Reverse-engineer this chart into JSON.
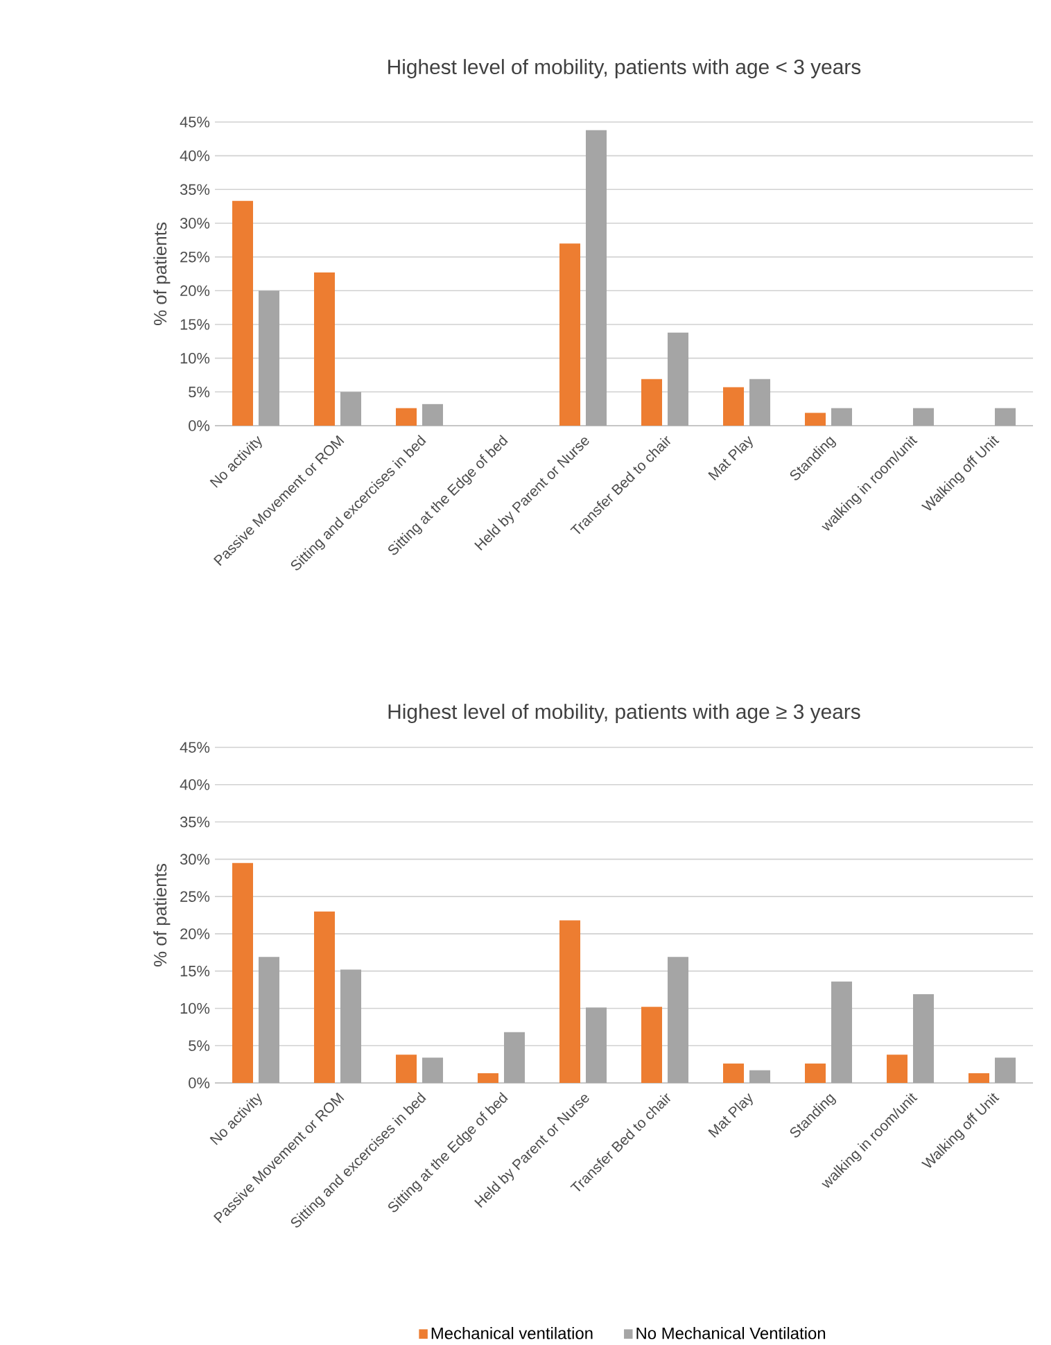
{
  "chart_data": [
    {
      "type": "bar",
      "title": "Highest level of mobility, patients with age < 3 years",
      "ylabel": "% of patients",
      "categories": [
        "No activity",
        "Passive Movement or ROM",
        "Sitting and excercises in bed",
        "Sitting at the Edge of bed",
        "Held by Parent or Nurse",
        "Transfer Bed to chair",
        "Mat Play",
        "Standing",
        "walking in room/unit",
        "Walking off Unit"
      ],
      "series": [
        {
          "color": "#ed7d31",
          "values": [
            33.3,
            22.7,
            2.6,
            0,
            27.0,
            6.9,
            5.7,
            1.9,
            0,
            0
          ]
        },
        {
          "color": "#a5a5a5",
          "values": [
            20.0,
            5.0,
            3.2,
            0,
            43.8,
            13.8,
            6.9,
            2.6,
            2.6,
            2.6
          ]
        }
      ],
      "ylim": [
        0,
        45
      ],
      "yticks": [
        {
          "value": 0,
          "label": "0%"
        },
        {
          "value": 5,
          "label": "5%"
        },
        {
          "value": 10,
          "label": "10%"
        },
        {
          "value": 15,
          "label": "15%"
        },
        {
          "value": 20,
          "label": "20%"
        },
        {
          "value": 25,
          "label": "25%"
        },
        {
          "value": 30,
          "label": "30%"
        },
        {
          "value": 35,
          "label": "35%"
        },
        {
          "value": 40,
          "label": "40%"
        },
        {
          "value": 45,
          "label": "45%"
        }
      ],
      "grid": "y"
    },
    {
      "type": "bar",
      "title": "Highest level of mobility, patients with age ≥ 3 years",
      "ylabel": "% of patients",
      "categories": [
        "No activity",
        "Passive Movement or ROM",
        "Sitting and excercises in bed",
        "Sitting at the Edge of bed",
        "Held by Parent or Nurse",
        "Transfer Bed to chair",
        "Mat Play",
        "Standing",
        "walking in room/unit",
        "Walking off Unit"
      ],
      "series": [
        {
          "name": "Mechanical ventilation",
          "color": "#ed7d31",
          "values": [
            29.5,
            23.0,
            3.8,
            1.3,
            21.8,
            10.2,
            2.6,
            2.6,
            3.8,
            1.3
          ]
        },
        {
          "name": "No Mechanical Ventilation",
          "color": "#a5a5a5",
          "values": [
            16.9,
            15.2,
            3.4,
            6.8,
            10.1,
            16.9,
            1.7,
            13.6,
            11.9,
            3.4
          ]
        }
      ],
      "ylim": [
        0,
        45
      ],
      "yticks": [
        {
          "value": 0,
          "label": "0%"
        },
        {
          "value": 5,
          "label": "5%"
        },
        {
          "value": 10,
          "label": "10%"
        },
        {
          "value": 15,
          "label": "15%"
        },
        {
          "value": 20,
          "label": "20%"
        },
        {
          "value": 25,
          "label": "25%"
        },
        {
          "value": 30,
          "label": "30%"
        },
        {
          "value": 35,
          "label": "35%"
        },
        {
          "value": 40,
          "label": "40%"
        },
        {
          "value": 45,
          "label": "45%"
        }
      ],
      "grid": "y",
      "legend": "bottom"
    }
  ]
}
